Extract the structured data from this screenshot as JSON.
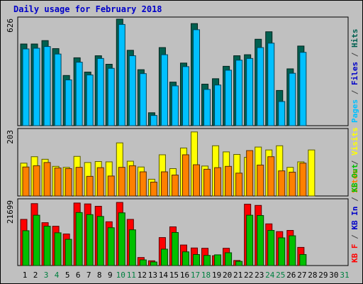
{
  "title": "Daily usage for February 2018",
  "chart_data": [
    {
      "type": "bar",
      "categories": [
        "1",
        "2",
        "3",
        "4",
        "5",
        "6",
        "7",
        "8",
        "9",
        "10",
        "11",
        "12",
        "13",
        "14",
        "15",
        "16",
        "17",
        "18",
        "19",
        "20",
        "21",
        "22",
        "23",
        "24",
        "25",
        "26",
        "27",
        "28",
        "29",
        "30",
        "31"
      ],
      "ymax_label": "626",
      "ylim": [
        0,
        626
      ],
      "series": [
        {
          "name": "Hits",
          "color": "#006050",
          "values": [
            480,
            480,
            500,
            453,
            295,
            399,
            315,
            411,
            361,
            626,
            443,
            329,
            76,
            459,
            256,
            368,
            600,
            244,
            276,
            349,
            411,
            417,
            508,
            552,
            207,
            334,
            468,
            0,
            0,
            0,
            0
          ]
        },
        {
          "name": "Files",
          "color": "#00c0ff",
          "values": [
            451,
            455,
            465,
            421,
            269,
            373,
            298,
            395,
            337,
            595,
            411,
            306,
            60,
            417,
            234,
            347,
            564,
            213,
            239,
            326,
            385,
            395,
            459,
            485,
            142,
            308,
            431,
            0,
            0,
            0,
            0
          ]
        },
        {
          "name": "Pages",
          "color": "#0000c8",
          "values": [
            480,
            480,
            500,
            453,
            295,
            399,
            315,
            411,
            361,
            626,
            443,
            329,
            76,
            459,
            256,
            368,
            600,
            244,
            276,
            349,
            411,
            417,
            508,
            552,
            207,
            334,
            468,
            0,
            0,
            0,
            0
          ]
        }
      ],
      "axis_labels": [
        {
          "text": "Pages",
          "color": "#00c0ff"
        },
        {
          "text": " / ",
          "color": "#444444"
        },
        {
          "text": "Files",
          "color": "#0000c8"
        },
        {
          "text": " / ",
          "color": "#444444"
        },
        {
          "text": "Hits",
          "color": "#006050"
        }
      ]
    },
    {
      "type": "bar",
      "categories": [
        "1",
        "2",
        "3",
        "4",
        "5",
        "6",
        "7",
        "8",
        "9",
        "10",
        "11",
        "12",
        "13",
        "14",
        "15",
        "16",
        "17",
        "18",
        "19",
        "20",
        "21",
        "22",
        "23",
        "24",
        "25",
        "26",
        "27",
        "28",
        "29",
        "30",
        "31"
      ],
      "ymax_label": "203",
      "ylim": [
        0,
        203
      ],
      "series": [
        {
          "name": "Visits",
          "color": "#ffff00",
          "values": [
            102,
            122,
            114,
            92,
            89,
            123,
            104,
            107,
            106,
            165,
            108,
            90,
            52,
            128,
            85,
            149,
            199,
            93,
            156,
            137,
            129,
            120,
            152,
            143,
            156,
            89,
            106,
            143,
            0,
            0,
            0
          ]
        },
        {
          "name": "Sites",
          "color": "#ff8000",
          "values": [
            90,
            94,
            104,
            87,
            85,
            89,
            61,
            88,
            62,
            89,
            94,
            75,
            43,
            75,
            65,
            128,
            97,
            83,
            88,
            92,
            71,
            141,
            96,
            122,
            78,
            74,
            102,
            0,
            0,
            0,
            0
          ]
        }
      ],
      "axis_labels": [
        {
          "text": "Sites",
          "color": "#ff8000"
        },
        {
          "text": " / ",
          "color": "#444444"
        },
        {
          "text": "Visits",
          "color": "#ffff00"
        }
      ]
    },
    {
      "type": "bar",
      "categories": [
        "1",
        "2",
        "3",
        "4",
        "5",
        "6",
        "7",
        "8",
        "9",
        "10",
        "11",
        "12",
        "13",
        "14",
        "15",
        "16",
        "17",
        "18",
        "19",
        "20",
        "21",
        "22",
        "23",
        "24",
        "25",
        "26",
        "27",
        "28",
        "29",
        "30",
        "31"
      ],
      "ymax_label": "21699",
      "ylim": [
        0,
        21699
      ],
      "series": [
        {
          "name": "KB F",
          "color": "#ff0000",
          "values": [
            15500,
            20800,
            14400,
            13200,
            10600,
            21000,
            20700,
            19900,
            14700,
            21200,
            15500,
            2700,
            1600,
            9400,
            13000,
            6900,
            5900,
            5800,
            3300,
            5800,
            1700,
            20600,
            20200,
            14000,
            11400,
            11800,
            6100,
            0,
            0,
            0,
            0
          ]
        },
        {
          "name": "KB In",
          "color": "#0000c8",
          "values": [
            0,
            0,
            0,
            0,
            0,
            0,
            0,
            0,
            0,
            0,
            0,
            0,
            0,
            0,
            0,
            0,
            0,
            0,
            0,
            0,
            0,
            0,
            0,
            0,
            0,
            0,
            0,
            0,
            0,
            0,
            0
          ]
        },
        {
          "name": "KB Out",
          "color": "#00c000",
          "values": [
            11700,
            16900,
            13200,
            11000,
            8800,
            17800,
            17100,
            16500,
            12700,
            17700,
            12000,
            1900,
            1200,
            5500,
            11100,
            4600,
            3700,
            3400,
            3600,
            4300,
            1400,
            16900,
            16800,
            11800,
            9300,
            10000,
            3700,
            0,
            0,
            0,
            0
          ]
        }
      ],
      "axis_labels": [
        {
          "text": "KB F",
          "color": "#ff0000"
        },
        {
          "text": " / ",
          "color": "#444444"
        },
        {
          "text": "KB In",
          "color": "#0000c8"
        },
        {
          "text": " / ",
          "color": "#444444"
        },
        {
          "text": "KB Out",
          "color": "#00c000"
        }
      ]
    }
  ],
  "weekend_days": [
    "3",
    "4",
    "10",
    "11",
    "17",
    "18",
    "24",
    "25",
    "31"
  ],
  "weekend_color": "#008040",
  "weekday_color": "#000000"
}
